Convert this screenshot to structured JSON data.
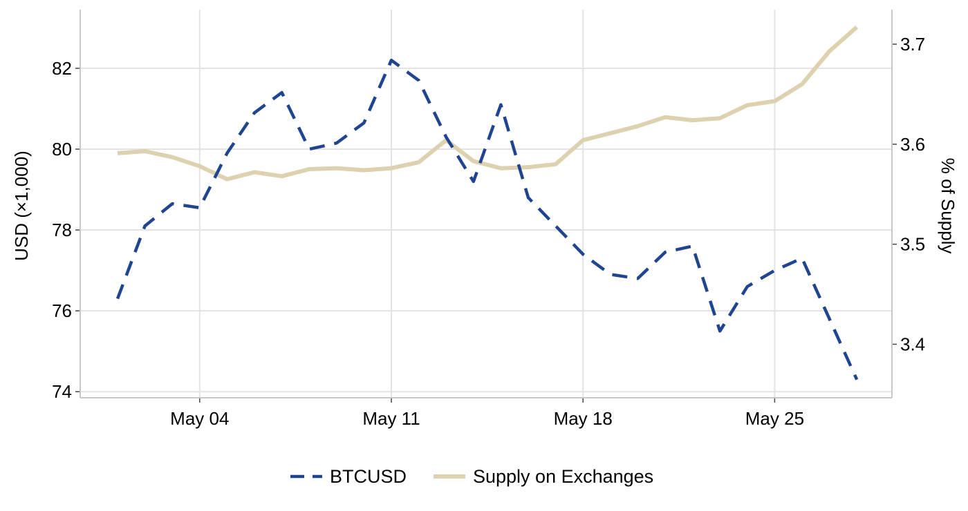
{
  "chart_data": {
    "type": "line",
    "title": "",
    "x_ticks": [
      "May 04",
      "May 11",
      "May 18",
      "May 25"
    ],
    "y_left": {
      "label": "USD (×1,000)",
      "ticks": [
        74,
        76,
        78,
        80,
        82
      ],
      "range": [
        73.85,
        83.45
      ]
    },
    "y_right": {
      "label": "% of Supply",
      "ticks": [
        "3.4",
        "3.5",
        "3.6",
        "3.7"
      ],
      "range": [
        3.3465,
        3.7345
      ]
    },
    "legend_position": "bottom",
    "grid": true,
    "x_dates": [
      "May 01",
      "May 02",
      "May 03",
      "May 04",
      "May 05",
      "May 06",
      "May 07",
      "May 08",
      "May 09",
      "May 10",
      "May 11",
      "May 12",
      "May 13",
      "May 14",
      "May 15",
      "May 16",
      "May 17",
      "May 18",
      "May 19",
      "May 20",
      "May 21",
      "May 22",
      "May 23",
      "May 24",
      "May 25",
      "May 26",
      "May 27",
      "May 28"
    ],
    "series": [
      {
        "name": "BTCUSD",
        "axis": "left",
        "color": "#1f4591",
        "style": "dashed",
        "values": [
          76.3,
          78.1,
          78.65,
          78.55,
          79.9,
          80.9,
          81.4,
          80.0,
          80.15,
          80.65,
          82.2,
          81.7,
          80.3,
          79.2,
          81.1,
          78.8,
          78.1,
          77.4,
          76.9,
          76.8,
          77.45,
          77.6,
          75.5,
          76.6,
          77.0,
          77.3,
          75.8,
          74.3
        ]
      },
      {
        "name": "Supply on Exchanges",
        "axis": "right",
        "color": "#ddd1b0",
        "style": "solid",
        "values": [
          3.591,
          3.593,
          3.587,
          3.578,
          3.565,
          3.572,
          3.568,
          3.575,
          3.576,
          3.574,
          3.576,
          3.582,
          3.604,
          3.583,
          3.576,
          3.577,
          3.58,
          3.604,
          3.611,
          3.618,
          3.627,
          3.624,
          3.626,
          3.639,
          3.643,
          3.66,
          3.693,
          3.717
        ]
      }
    ]
  }
}
